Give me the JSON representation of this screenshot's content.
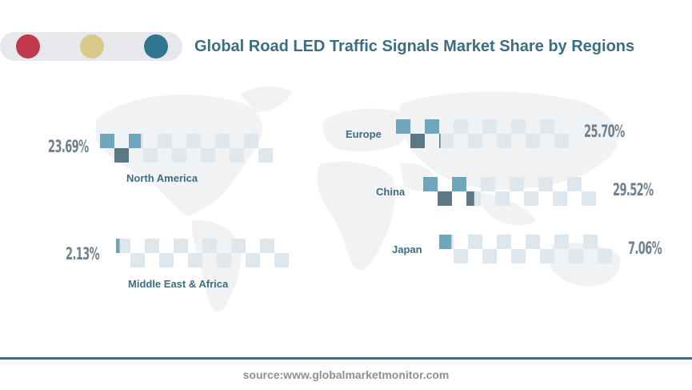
{
  "title": "Global Road LED Traffic Signals Market Share by Regions",
  "source": "source:www.globalmarketmonitor.com",
  "colors": {
    "dot_red": "#c0394a",
    "dot_yellow": "#d8cb8a",
    "dot_teal": "#2f7590",
    "title": "#3b6e82",
    "square_light_blue": "#6ea6bd",
    "square_dark": "#5d7885",
    "square_pale": "#dfe7ec",
    "percent_text": "#6e818e"
  },
  "chart_data": {
    "type": "bar",
    "title": "Global Road LED Traffic Signals Market Share by Regions",
    "unit": "%",
    "categories": [
      "North America",
      "Europe",
      "China",
      "Middle East & Africa",
      "Japan"
    ],
    "values": [
      23.69,
      25.7,
      29.52,
      2.13,
      7.06
    ],
    "labels": [
      "23.69%",
      "25.70%",
      "29.52%",
      "2.13%",
      "7.06%"
    ],
    "max": 100
  }
}
